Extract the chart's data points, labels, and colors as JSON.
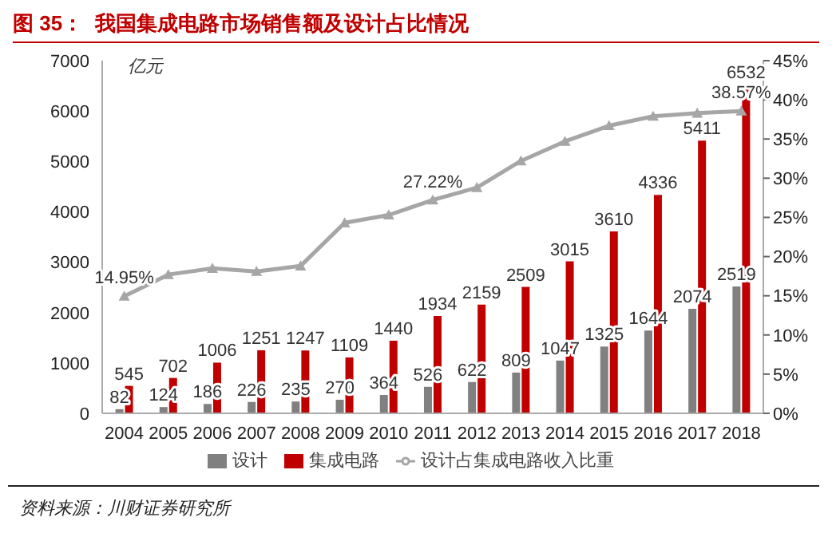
{
  "chart_data": {
    "type": "bar",
    "title": "图 35：  我国集成电路市场销售额及设计占比情况",
    "ylabel": "亿元",
    "annotations": [
      "资料来源：川财证券研究所"
    ],
    "categories": [
      "2004",
      "2005",
      "2006",
      "2007",
      "2008",
      "2009",
      "2010",
      "2011",
      "2012",
      "2013",
      "2014",
      "2015",
      "2016",
      "2017",
      "2018"
    ],
    "series": [
      {
        "name": "设计",
        "color": "#808080",
        "values": [
          82,
          124,
          186,
          226,
          235,
          270,
          364,
          526,
          622,
          809,
          1047,
          1325,
          1644,
          2074,
          2519
        ],
        "value_labels": [
          "82",
          "124",
          "186",
          "226",
          "235",
          "270",
          "364",
          "526",
          "622",
          "809",
          "1047",
          "1325",
          "1644",
          "2074",
          "2519"
        ]
      },
      {
        "name": "集成电路",
        "color": "#c00000",
        "values": [
          545,
          702,
          1006,
          1251,
          1247,
          1109,
          1440,
          1934,
          2159,
          2509,
          3015,
          3610,
          4336,
          5411,
          6532
        ],
        "value_labels": [
          "545",
          "702",
          "1006",
          "1251",
          "1247",
          "1109",
          "1440",
          "1934",
          "2159",
          "2509",
          "3015",
          "3610",
          "4336",
          "5411",
          "6532"
        ]
      },
      {
        "name": "设计占集成电路收入比重",
        "type": "line",
        "axis": "y2",
        "color": "#a6a6a6",
        "marker": "triangle",
        "values": [
          14.95,
          17.7,
          18.5,
          18.1,
          18.8,
          24.3,
          25.3,
          27.22,
          28.8,
          32.2,
          34.7,
          36.7,
          37.9,
          38.3,
          38.57
        ],
        "value_labels": [
          "14.95%",
          null,
          null,
          null,
          null,
          null,
          null,
          "27.22%",
          null,
          null,
          null,
          null,
          null,
          null,
          "38.57%"
        ]
      }
    ],
    "ylim": [
      0,
      7000
    ],
    "yticks": [
      0,
      1000,
      2000,
      3000,
      4000,
      5000,
      6000,
      7000
    ],
    "y2lim": [
      0,
      45
    ],
    "y2ticks": [
      {
        "value": 0,
        "label": "0%"
      },
      {
        "value": 5,
        "label": "5%"
      },
      {
        "value": 10,
        "label": "10%"
      },
      {
        "value": 15,
        "label": "15%"
      },
      {
        "value": 20,
        "label": "20%"
      },
      {
        "value": 25,
        "label": "25%"
      },
      {
        "value": 30,
        "label": "30%"
      },
      {
        "value": 35,
        "label": "35%"
      },
      {
        "value": 40,
        "label": "40%"
      },
      {
        "value": 45,
        "label": "45%"
      }
    ],
    "legend": "bottom"
  }
}
